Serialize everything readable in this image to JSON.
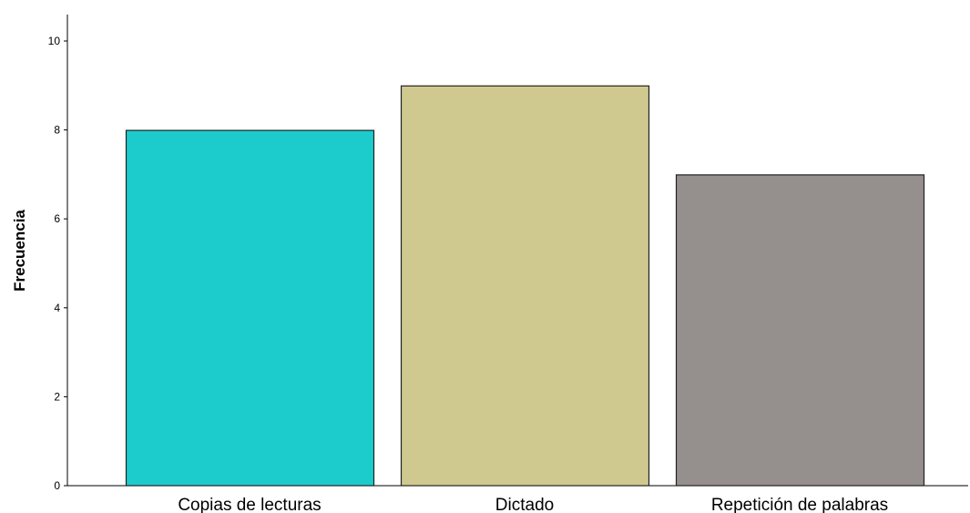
{
  "chart_data": {
    "type": "bar",
    "title": "",
    "xlabel": "",
    "ylabel": "Frecuencia",
    "categories": [
      "Copias de lecturas",
      "Dictado",
      "Repetición de palabras"
    ],
    "values": [
      8,
      9,
      7
    ],
    "colors": [
      "#1ccccc",
      "#d0c98f",
      "#958f8d"
    ],
    "ylim": [
      0,
      10
    ],
    "yticks": [
      "0",
      "2",
      "4",
      "6",
      "8",
      "10"
    ],
    "grid": false,
    "legend": "none"
  }
}
